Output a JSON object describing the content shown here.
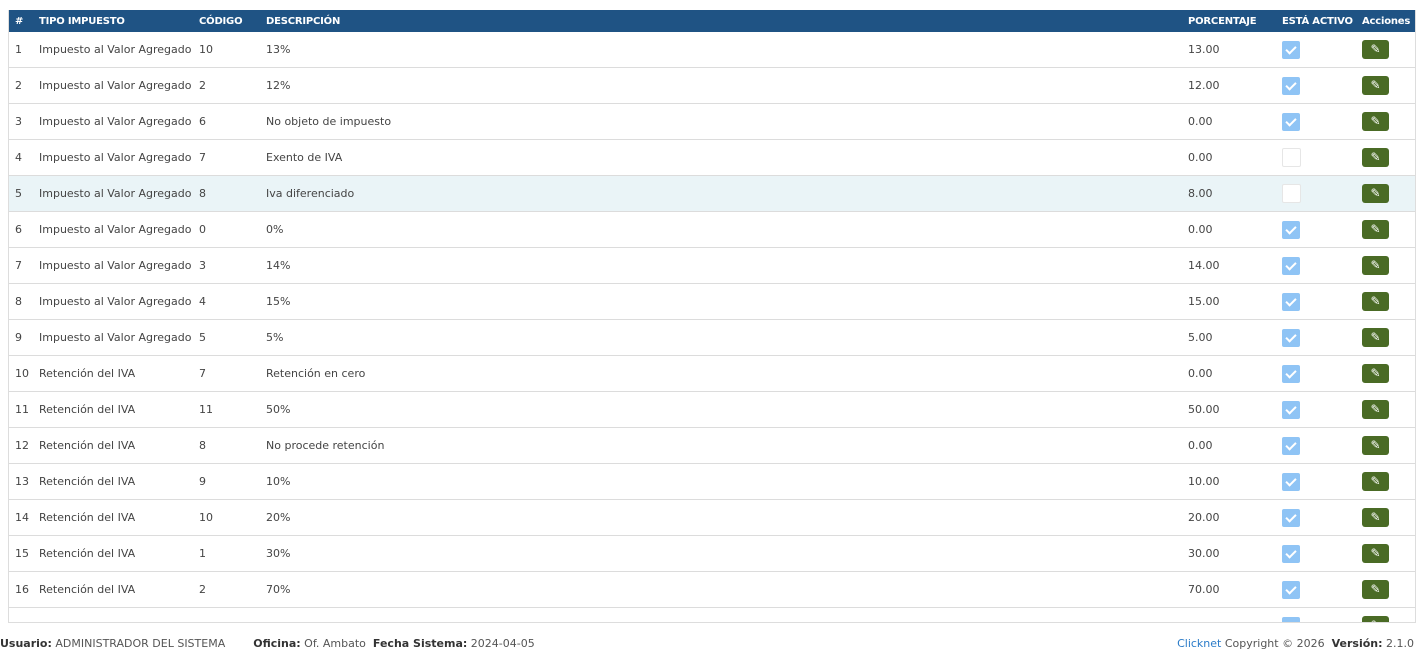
{
  "table": {
    "headers": [
      "#",
      "TIPO IMPUESTO",
      "CÓDIGO",
      "DESCRIPCIÓN",
      "PORCENTAJE",
      "ESTÁ ACTIVO",
      "Acciones"
    ],
    "rows": [
      {
        "n": "1",
        "tipo": "Impuesto al Valor Agregado",
        "codigo": "10",
        "desc": "13%",
        "pct": "13.00",
        "activo": true
      },
      {
        "n": "2",
        "tipo": "Impuesto al Valor Agregado",
        "codigo": "2",
        "desc": "12%",
        "pct": "12.00",
        "activo": true
      },
      {
        "n": "3",
        "tipo": "Impuesto al Valor Agregado",
        "codigo": "6",
        "desc": "No objeto de impuesto",
        "pct": "0.00",
        "activo": true
      },
      {
        "n": "4",
        "tipo": "Impuesto al Valor Agregado",
        "codigo": "7",
        "desc": "Exento de IVA",
        "pct": "0.00",
        "activo": false
      },
      {
        "n": "5",
        "tipo": "Impuesto al Valor Agregado",
        "codigo": "8",
        "desc": "Iva diferenciado",
        "pct": "8.00",
        "activo": false
      },
      {
        "n": "6",
        "tipo": "Impuesto al Valor Agregado",
        "codigo": "0",
        "desc": "0%",
        "pct": "0.00",
        "activo": true
      },
      {
        "n": "7",
        "tipo": "Impuesto al Valor Agregado",
        "codigo": "3",
        "desc": "14%",
        "pct": "14.00",
        "activo": true
      },
      {
        "n": "8",
        "tipo": "Impuesto al Valor Agregado",
        "codigo": "4",
        "desc": "15%",
        "pct": "15.00",
        "activo": true
      },
      {
        "n": "9",
        "tipo": "Impuesto al Valor Agregado",
        "codigo": "5",
        "desc": "5%",
        "pct": "5.00",
        "activo": true
      },
      {
        "n": "10",
        "tipo": "Retención del IVA",
        "codigo": "7",
        "desc": "Retención en cero",
        "pct": "0.00",
        "activo": true
      },
      {
        "n": "11",
        "tipo": "Retención del IVA",
        "codigo": "11",
        "desc": "50%",
        "pct": "50.00",
        "activo": true
      },
      {
        "n": "12",
        "tipo": "Retención del IVA",
        "codigo": "8",
        "desc": "No procede retención",
        "pct": "0.00",
        "activo": true
      },
      {
        "n": "13",
        "tipo": "Retención del IVA",
        "codigo": "9",
        "desc": "10%",
        "pct": "10.00",
        "activo": true
      },
      {
        "n": "14",
        "tipo": "Retención del IVA",
        "codigo": "10",
        "desc": "20%",
        "pct": "20.00",
        "activo": true
      },
      {
        "n": "15",
        "tipo": "Retención del IVA",
        "codigo": "1",
        "desc": "30%",
        "pct": "30.00",
        "activo": true
      },
      {
        "n": "16",
        "tipo": "Retención del IVA",
        "codigo": "2",
        "desc": "70%",
        "pct": "70.00",
        "activo": true
      },
      {
        "n": "",
        "tipo": "",
        "codigo": "",
        "desc": "",
        "pct": "",
        "activo": true
      }
    ],
    "hover_row": 4
  },
  "footer": {
    "user_label": "Usuario:",
    "user": "ADMINISTRADOR DEL SISTEMA",
    "office_label": "Oficina:",
    "office": "Of. Ambato",
    "date_label": "Fecha Sistema:",
    "date": "2024-04-05",
    "brand": "Clicknet",
    "copyright": "Copyright © 2026",
    "version_label": "Versión:",
    "version": "2.1.0"
  },
  "colors": {
    "header": "#1f5384",
    "edit_button": "#4a6b25",
    "checkbox": "#8fc4f5"
  },
  "icons": {
    "edit": "pencil-icon",
    "active": "check-icon"
  }
}
